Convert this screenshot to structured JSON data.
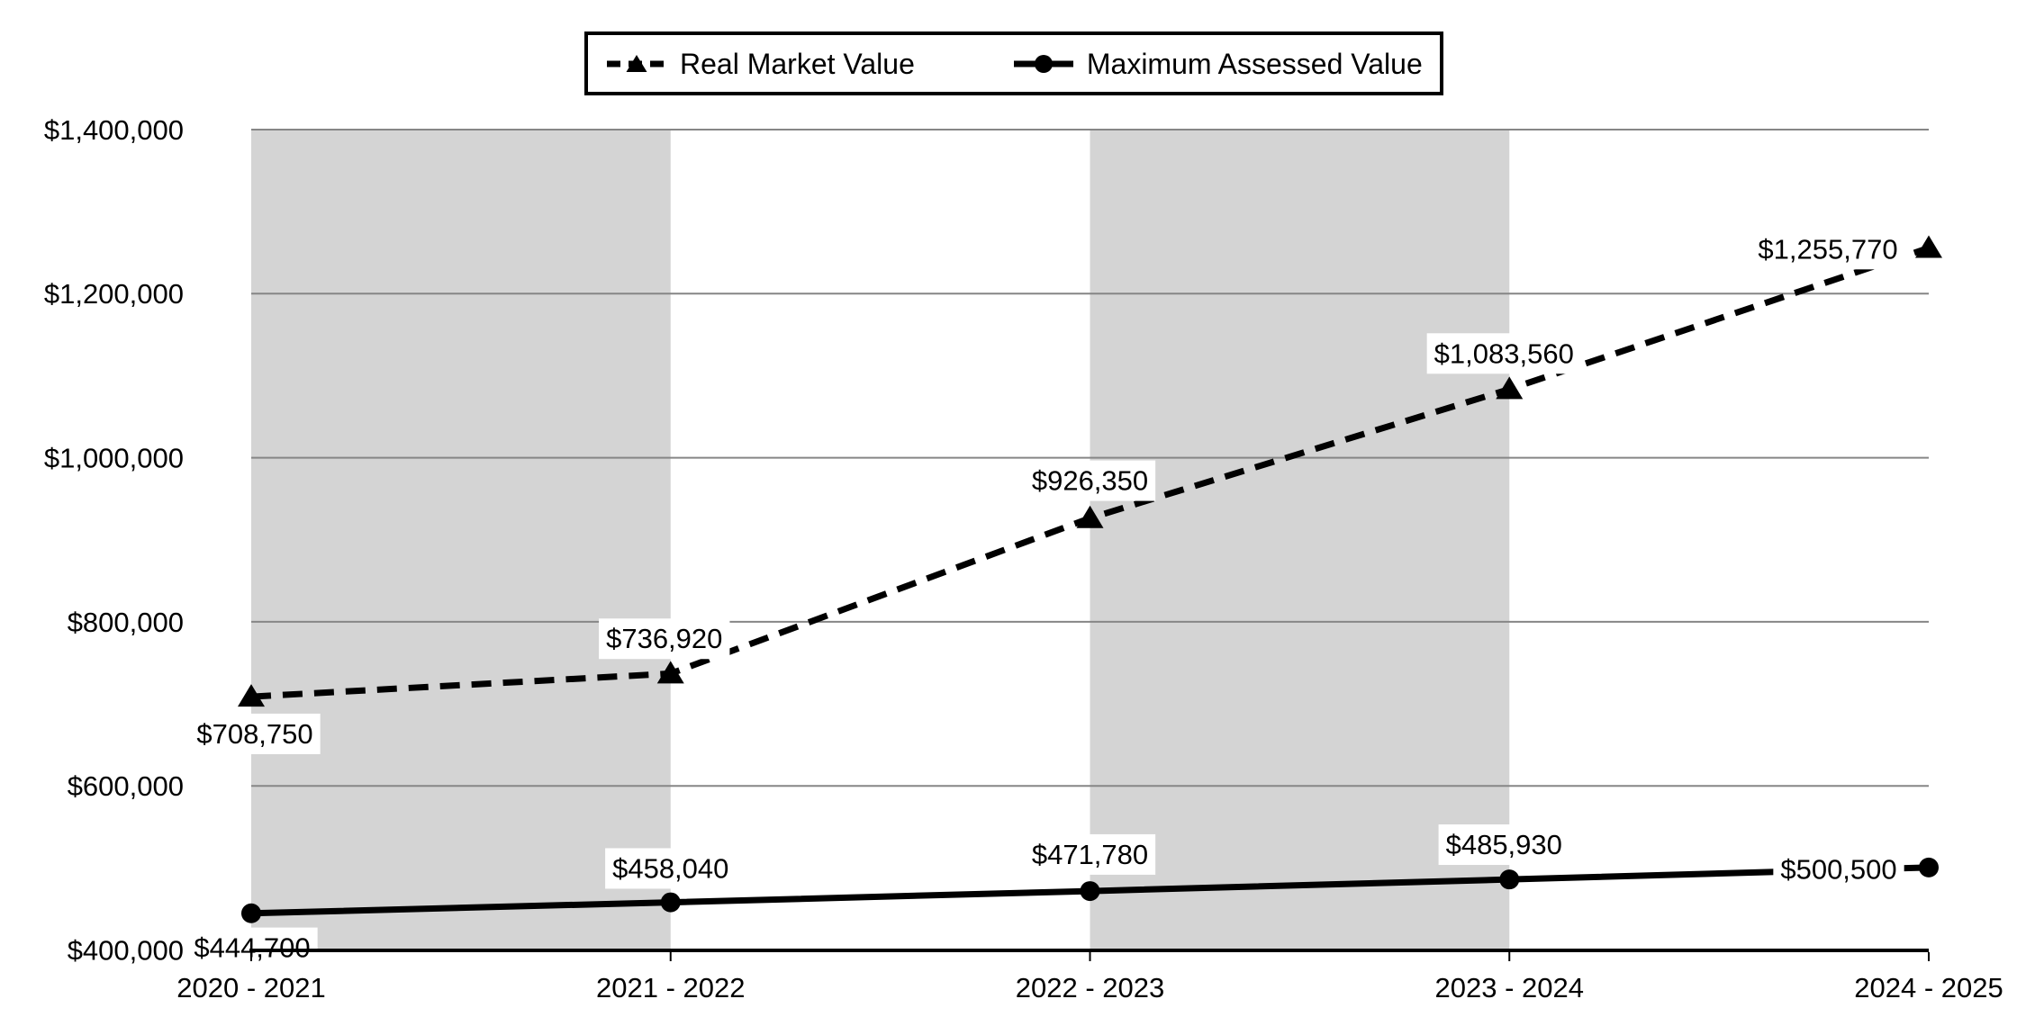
{
  "chart_data": {
    "type": "line",
    "title": "",
    "categories": [
      "2020 - 2021",
      "2021 - 2022",
      "2022 - 2023",
      "2023 - 2024",
      "2024 - 2025"
    ],
    "series": [
      {
        "name": "Real Market Value",
        "line_style": "dashed",
        "marker": "triangle",
        "values": [
          708750,
          736920,
          926350,
          1083560,
          1255770
        ],
        "labels": [
          "$708,750",
          "$736,920",
          "$926,350",
          "$1,083,560",
          "$1,255,770"
        ]
      },
      {
        "name": "Maximum Assessed Value",
        "line_style": "solid",
        "marker": "circle",
        "values": [
          444700,
          458040,
          471780,
          485930,
          500500
        ],
        "labels": [
          "$444,700",
          "$458,040",
          "$471,780",
          "$485,930",
          "$500,500"
        ]
      }
    ],
    "y_axis": {
      "min": 400000,
      "max": 1400000,
      "step": 200000,
      "tick_labels": [
        "$400,000",
        "$600,000",
        "$800,000",
        "$1,000,000",
        "$1,200,000",
        "$1,400,000"
      ]
    },
    "legend": {
      "position": "top"
    },
    "grid": true,
    "ylim": [
      400000,
      1400000
    ],
    "shaded_column_intervals": [
      [
        0,
        1
      ],
      [
        2,
        3
      ]
    ],
    "colors": {
      "line": "#000000",
      "gridline": "#868686",
      "band": "#D4D4D4",
      "background": "#FFFFFF",
      "label_background": "#FFFFFF",
      "text": "#000000"
    }
  }
}
